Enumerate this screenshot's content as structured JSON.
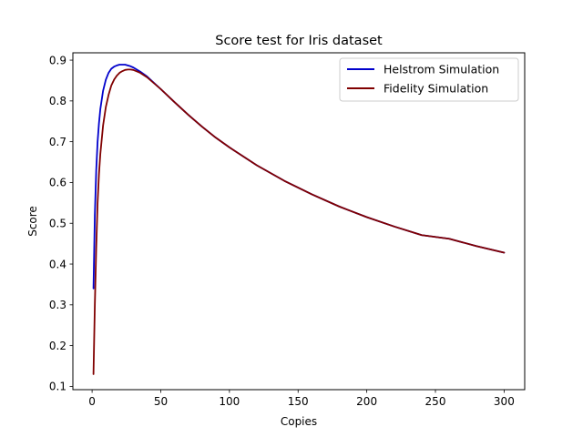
{
  "chart_data": {
    "type": "line",
    "title": "Score test for Iris dataset",
    "xlabel": "Copies",
    "ylabel": "Score",
    "xlim": [
      -14,
      315
    ],
    "ylim": [
      0.092,
      0.918
    ],
    "xticks": [
      0,
      50,
      100,
      150,
      200,
      250,
      300
    ],
    "yticks": [
      0.1,
      0.2,
      0.3,
      0.4,
      0.5,
      0.6,
      0.7,
      0.8,
      0.9
    ],
    "grid": false,
    "legend": {
      "placement": "top-right"
    },
    "series": [
      {
        "name": "Helstrom Simulation",
        "color": "#0000cc",
        "x": [
          1,
          2,
          3,
          4,
          5,
          6,
          8,
          10,
          12,
          14,
          16,
          18,
          20,
          22,
          24,
          26,
          28,
          30,
          35,
          40,
          50,
          60,
          70,
          80,
          90,
          100,
          120,
          140,
          160,
          180,
          200,
          220,
          240,
          260,
          280,
          300
        ],
        "y": [
          0.34,
          0.52,
          0.63,
          0.7,
          0.745,
          0.78,
          0.825,
          0.852,
          0.869,
          0.879,
          0.884,
          0.887,
          0.889,
          0.889,
          0.889,
          0.887,
          0.885,
          0.882,
          0.872,
          0.86,
          0.829,
          0.797,
          0.766,
          0.737,
          0.71,
          0.686,
          0.642,
          0.604,
          0.571,
          0.541,
          0.515,
          0.492,
          0.471,
          0.462,
          0.444,
          0.428
        ]
      },
      {
        "name": "Fidelity Simulation",
        "color": "#800000",
        "x": [
          1,
          2,
          3,
          4,
          5,
          6,
          8,
          10,
          12,
          14,
          16,
          18,
          20,
          22,
          24,
          26,
          28,
          30,
          35,
          40,
          50,
          60,
          70,
          80,
          90,
          100,
          120,
          140,
          160,
          180,
          200,
          220,
          240,
          260,
          280,
          300
        ],
        "y": [
          0.13,
          0.3,
          0.44,
          0.55,
          0.62,
          0.67,
          0.74,
          0.785,
          0.815,
          0.838,
          0.852,
          0.862,
          0.869,
          0.873,
          0.876,
          0.877,
          0.877,
          0.876,
          0.869,
          0.858,
          0.829,
          0.797,
          0.766,
          0.737,
          0.71,
          0.686,
          0.642,
          0.604,
          0.571,
          0.541,
          0.515,
          0.492,
          0.471,
          0.462,
          0.444,
          0.428
        ]
      }
    ]
  }
}
